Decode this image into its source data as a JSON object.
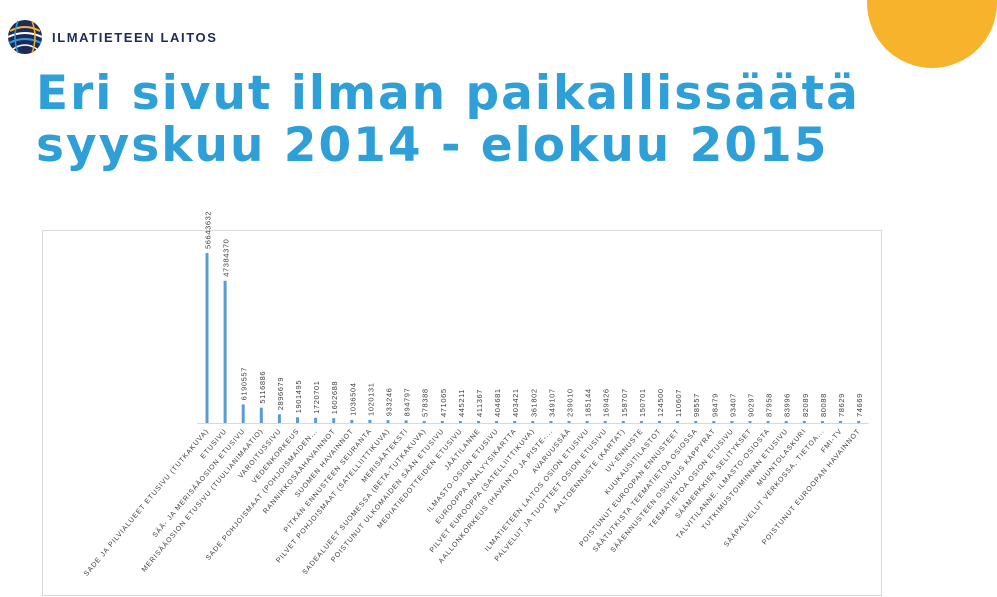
{
  "brand": {
    "name": "ILMATIETEEN LAITOS",
    "accent": "#2f9fd8",
    "corner_color": "#f7b32b",
    "logo_icon": "globe-lines-icon"
  },
  "slide": {
    "title_line1": "Eri sivut ilman paikallissäätä",
    "title_line2": "syyskuu 2014 - elokuu 2015"
  },
  "chart_data": {
    "type": "bar",
    "title": "",
    "xlabel": "",
    "ylabel": "",
    "grid": false,
    "bar_color": "#5b9bd5",
    "categories": [
      "SADE JA PILVIALUEET ETUSIVU (TUTKAKUVA)",
      "ETUSIVU",
      "SÄÄ- JA MERISÄÄOSION ETUSIVU",
      "MERISÄÄOSION ETUSIVU (TUULIANIMAATIO)",
      "VAROITUSSIVU",
      "VEDENKORKEUS",
      "SADE POHJOISMAAT (POHJOISMAIDEN...",
      "RANNIKKOSÄÄHAVAINNOT",
      "SUOMEN HAVAINNOT",
      "PITKÄN ENNUSTEEN SEURANTA",
      "PILVET POHJOISMAAT (SATELLIITTIKUVA)",
      "MERISÄÄTEKSTI",
      "SADEALUEET SUOMESSA (BETA-TUTKAKUVA)",
      "POISTUNUT ULKOMAIDEN SÄÄN ETUSIVU",
      "MEDIATIEDOTTEIDEN ETUSIVU",
      "JÄÄTILANNE",
      "ILMASTO-OSION ETUSIVU",
      "EUROOPPA ANALYYSIKARTTA",
      "PILVET EUROOPPA (SATELLIITTIKUVA)",
      "AALLONKORKEUS (HAVAINTO JA PISTE-...",
      "AVARUUSSÄÄ",
      "ILMATIETEEN LAITOS OSION ETUSIVU",
      "PALVELUT JA TUOTTEET OSION ETUSIVU",
      "AALTOENNUSTE (KARTAT)",
      "UV-ENNUSTE",
      "KUUKAUSITILASTOT",
      "POISTUNUT EUROOPAN ENNUSTEET",
      "SÄÄTUTKISTA TEEMATIETOA OSIOSSA",
      "SÄÄENNUSTEEN OSUVUUS KÄPPYRÄT",
      "TEEMATIETOA OSION ETUSIVU",
      "SÄÄMERKKIEN SELITYKSET",
      "TALVITILANNE, ILMASTO-OSIOSTA",
      "TUTKIMUSTOIMINNAN ETUSIVU",
      "MUUNTOLASKURI",
      "SÄÄPALVELUT VERKOSSA, TIETOA...",
      "FMI-TV",
      "POISTUNUT EUROOPAN HAVAINNOT"
    ],
    "values": [
      56643632,
      47384370,
      6190557,
      5116886,
      2896679,
      1901495,
      1720701,
      1602688,
      1036504,
      1020131,
      933246,
      894797,
      578388,
      471065,
      445211,
      411367,
      404681,
      403421,
      361802,
      349107,
      239010,
      185144,
      169426,
      158707,
      150701,
      124500,
      110607,
      98557,
      98479,
      93407,
      90297,
      87958,
      83996,
      82089,
      80088,
      78629,
      74669
    ],
    "labels": [
      "56643632",
      "47384370",
      "6190557",
      "5116886",
      "2896679",
      "1901495",
      "1720701",
      "1602688",
      "1036504",
      "1020131",
      "933246",
      "894797",
      "578388",
      "471065",
      "445211",
      "411367",
      "404681",
      "403421",
      "361802",
      "349107",
      "239010",
      "185144",
      "169426",
      "158707",
      "150701",
      "124500",
      "110607",
      "98557",
      "98479",
      "93407",
      "90297",
      "87958",
      "83996",
      "82089",
      "80088",
      "78629",
      "74669"
    ]
  }
}
